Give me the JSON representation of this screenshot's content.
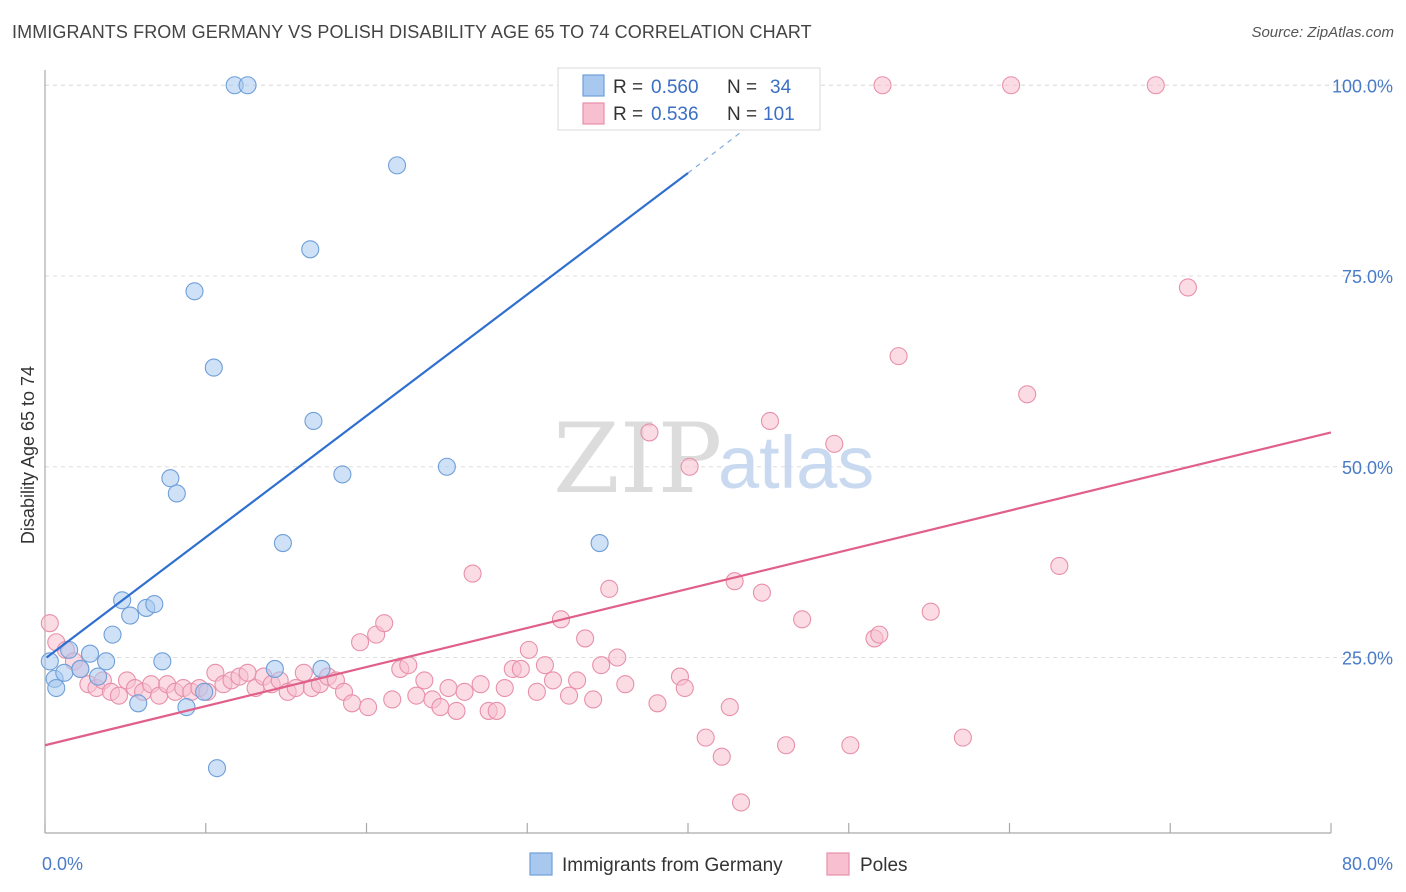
{
  "header": {
    "title": "IMMIGRANTS FROM GERMANY VS POLISH DISABILITY AGE 65 TO 74 CORRELATION CHART",
    "source": "Source: ZipAtlas.com"
  },
  "watermark": {
    "zip": "ZIP",
    "atlas": "atlas"
  },
  "stats": [
    {
      "r_label": "R =",
      "r": "0.560",
      "n_label": "N =",
      "n": "34",
      "color": "#a8c8f0",
      "border": "#6f9fd8"
    },
    {
      "r_label": "R =",
      "r": "0.536",
      "n_label": "N =",
      "n": "101",
      "color": "#f8bfd0",
      "border": "#e890aa"
    }
  ],
  "legend": [
    {
      "label": "Immigrants from Germany",
      "color": "#a8c8f0",
      "border": "#6f9fd8"
    },
    {
      "label": "Poles",
      "color": "#f8bfd0",
      "border": "#e890aa"
    }
  ],
  "chart_data": {
    "type": "scatter",
    "ylabel": "Disability Age 65 to 74",
    "xlim": [
      0,
      80
    ],
    "ylim": [
      2,
      102
    ],
    "x_tick_labels": [
      {
        "value": 0,
        "label": "0.0%"
      },
      {
        "value": 80,
        "label": "80.0%"
      }
    ],
    "y_tick_labels": [
      {
        "value": 25,
        "label": "25.0%"
      },
      {
        "value": 50,
        "label": "50.0%"
      },
      {
        "value": 75,
        "label": "75.0%"
      },
      {
        "value": 100,
        "label": "100.0%"
      }
    ],
    "grid": true,
    "series": [
      {
        "name": "Immigrants from Germany",
        "color": "#a8c8f0",
        "stroke": "#6f9fd8",
        "trend_color": "#2f6fcf",
        "trend": {
          "x0": 0.1,
          "y0": 25.0,
          "x1": 40.0,
          "y1": 88.5,
          "dash_to_x": 44.0,
          "dash_to_y": 95.0
        },
        "points": [
          [
            0.3,
            24.5
          ],
          [
            0.6,
            22.2
          ],
          [
            1.2,
            23.0
          ],
          [
            1.5,
            26.0
          ],
          [
            2.2,
            23.5
          ],
          [
            2.8,
            25.5
          ],
          [
            3.3,
            22.5
          ],
          [
            3.8,
            24.5
          ],
          [
            4.2,
            28.0
          ],
          [
            4.8,
            32.5
          ],
          [
            5.3,
            30.5
          ],
          [
            5.8,
            19.0
          ],
          [
            6.3,
            31.5
          ],
          [
            6.8,
            32.0
          ],
          [
            7.3,
            24.5
          ],
          [
            7.8,
            48.5
          ],
          [
            8.2,
            46.5
          ],
          [
            8.8,
            18.5
          ],
          [
            9.3,
            73.0
          ],
          [
            9.9,
            20.5
          ],
          [
            10.5,
            63.0
          ],
          [
            10.7,
            10.5
          ],
          [
            11.8,
            100.0
          ],
          [
            12.6,
            100.0
          ],
          [
            14.3,
            23.5
          ],
          [
            14.8,
            40.0
          ],
          [
            16.5,
            78.5
          ],
          [
            16.7,
            56.0
          ],
          [
            17.2,
            23.5
          ],
          [
            18.5,
            49.0
          ],
          [
            21.9,
            89.5
          ],
          [
            25.0,
            50.0
          ],
          [
            34.5,
            40.0
          ],
          [
            0.7,
            21.0
          ]
        ]
      },
      {
        "name": "Poles",
        "color": "#f8bfd0",
        "stroke": "#e890aa",
        "trend_color": "#e0608a",
        "trend": {
          "x0": 0.0,
          "y0": 13.5,
          "x1": 80.0,
          "y1": 54.5
        },
        "points": [
          [
            0.3,
            29.5
          ],
          [
            0.7,
            27.0
          ],
          [
            1.3,
            26.0
          ],
          [
            1.8,
            24.5
          ],
          [
            2.2,
            23.5
          ],
          [
            2.7,
            21.5
          ],
          [
            3.2,
            21.0
          ],
          [
            3.6,
            22.0
          ],
          [
            4.1,
            20.5
          ],
          [
            4.6,
            20.0
          ],
          [
            5.1,
            22.0
          ],
          [
            5.6,
            21.0
          ],
          [
            6.1,
            20.5
          ],
          [
            6.6,
            21.5
          ],
          [
            7.1,
            20.0
          ],
          [
            7.6,
            21.5
          ],
          [
            8.1,
            20.5
          ],
          [
            8.6,
            21.0
          ],
          [
            9.1,
            20.5
          ],
          [
            9.6,
            21.0
          ],
          [
            10.1,
            20.5
          ],
          [
            10.6,
            23.0
          ],
          [
            11.1,
            21.5
          ],
          [
            11.6,
            22.0
          ],
          [
            12.1,
            22.5
          ],
          [
            12.6,
            23.0
          ],
          [
            13.1,
            21.0
          ],
          [
            13.6,
            22.5
          ],
          [
            14.1,
            21.5
          ],
          [
            14.6,
            22.0
          ],
          [
            15.1,
            20.5
          ],
          [
            15.6,
            21.0
          ],
          [
            16.1,
            23.0
          ],
          [
            16.6,
            21.0
          ],
          [
            17.1,
            21.5
          ],
          [
            17.6,
            22.5
          ],
          [
            18.1,
            22.0
          ],
          [
            18.6,
            20.5
          ],
          [
            19.1,
            19.0
          ],
          [
            19.6,
            27.0
          ],
          [
            20.1,
            18.5
          ],
          [
            20.6,
            28.0
          ],
          [
            21.1,
            29.5
          ],
          [
            21.6,
            19.5
          ],
          [
            22.1,
            23.5
          ],
          [
            22.6,
            24.0
          ],
          [
            23.1,
            20.0
          ],
          [
            23.6,
            22.0
          ],
          [
            24.1,
            19.5
          ],
          [
            24.6,
            18.5
          ],
          [
            25.1,
            21.0
          ],
          [
            25.6,
            18.0
          ],
          [
            26.1,
            20.5
          ],
          [
            26.6,
            36.0
          ],
          [
            27.1,
            21.5
          ],
          [
            27.6,
            18.0
          ],
          [
            28.1,
            18.0
          ],
          [
            28.6,
            21.0
          ],
          [
            29.1,
            23.5
          ],
          [
            29.6,
            23.5
          ],
          [
            30.1,
            26.0
          ],
          [
            30.6,
            20.5
          ],
          [
            31.1,
            24.0
          ],
          [
            31.6,
            22.0
          ],
          [
            32.1,
            30.0
          ],
          [
            32.6,
            20.0
          ],
          [
            33.1,
            22.0
          ],
          [
            33.6,
            27.5
          ],
          [
            34.1,
            19.5
          ],
          [
            34.6,
            24.0
          ],
          [
            35.1,
            34.0
          ],
          [
            35.6,
            25.0
          ],
          [
            36.1,
            21.5
          ],
          [
            37.6,
            54.5
          ],
          [
            38.1,
            19.0
          ],
          [
            40.1,
            50.0
          ],
          [
            39.5,
            22.5
          ],
          [
            39.8,
            21.0
          ],
          [
            41.1,
            14.5
          ],
          [
            42.1,
            12.0
          ],
          [
            42.6,
            18.5
          ],
          [
            42.9,
            35.0
          ],
          [
            43.3,
            6.0
          ],
          [
            44.6,
            33.5
          ],
          [
            45.1,
            56.0
          ],
          [
            46.1,
            13.5
          ],
          [
            47.1,
            30.0
          ],
          [
            49.1,
            53.0
          ],
          [
            50.1,
            13.5
          ],
          [
            51.6,
            27.5
          ],
          [
            51.9,
            28.0
          ],
          [
            52.1,
            100.0
          ],
          [
            53.1,
            64.5
          ],
          [
            55.1,
            31.0
          ],
          [
            57.1,
            14.5
          ],
          [
            60.1,
            100.0
          ],
          [
            61.1,
            59.5
          ],
          [
            63.1,
            37.0
          ],
          [
            69.1,
            100.0
          ],
          [
            71.1,
            73.5
          ],
          [
            39.3,
            100.0
          ]
        ]
      }
    ]
  }
}
